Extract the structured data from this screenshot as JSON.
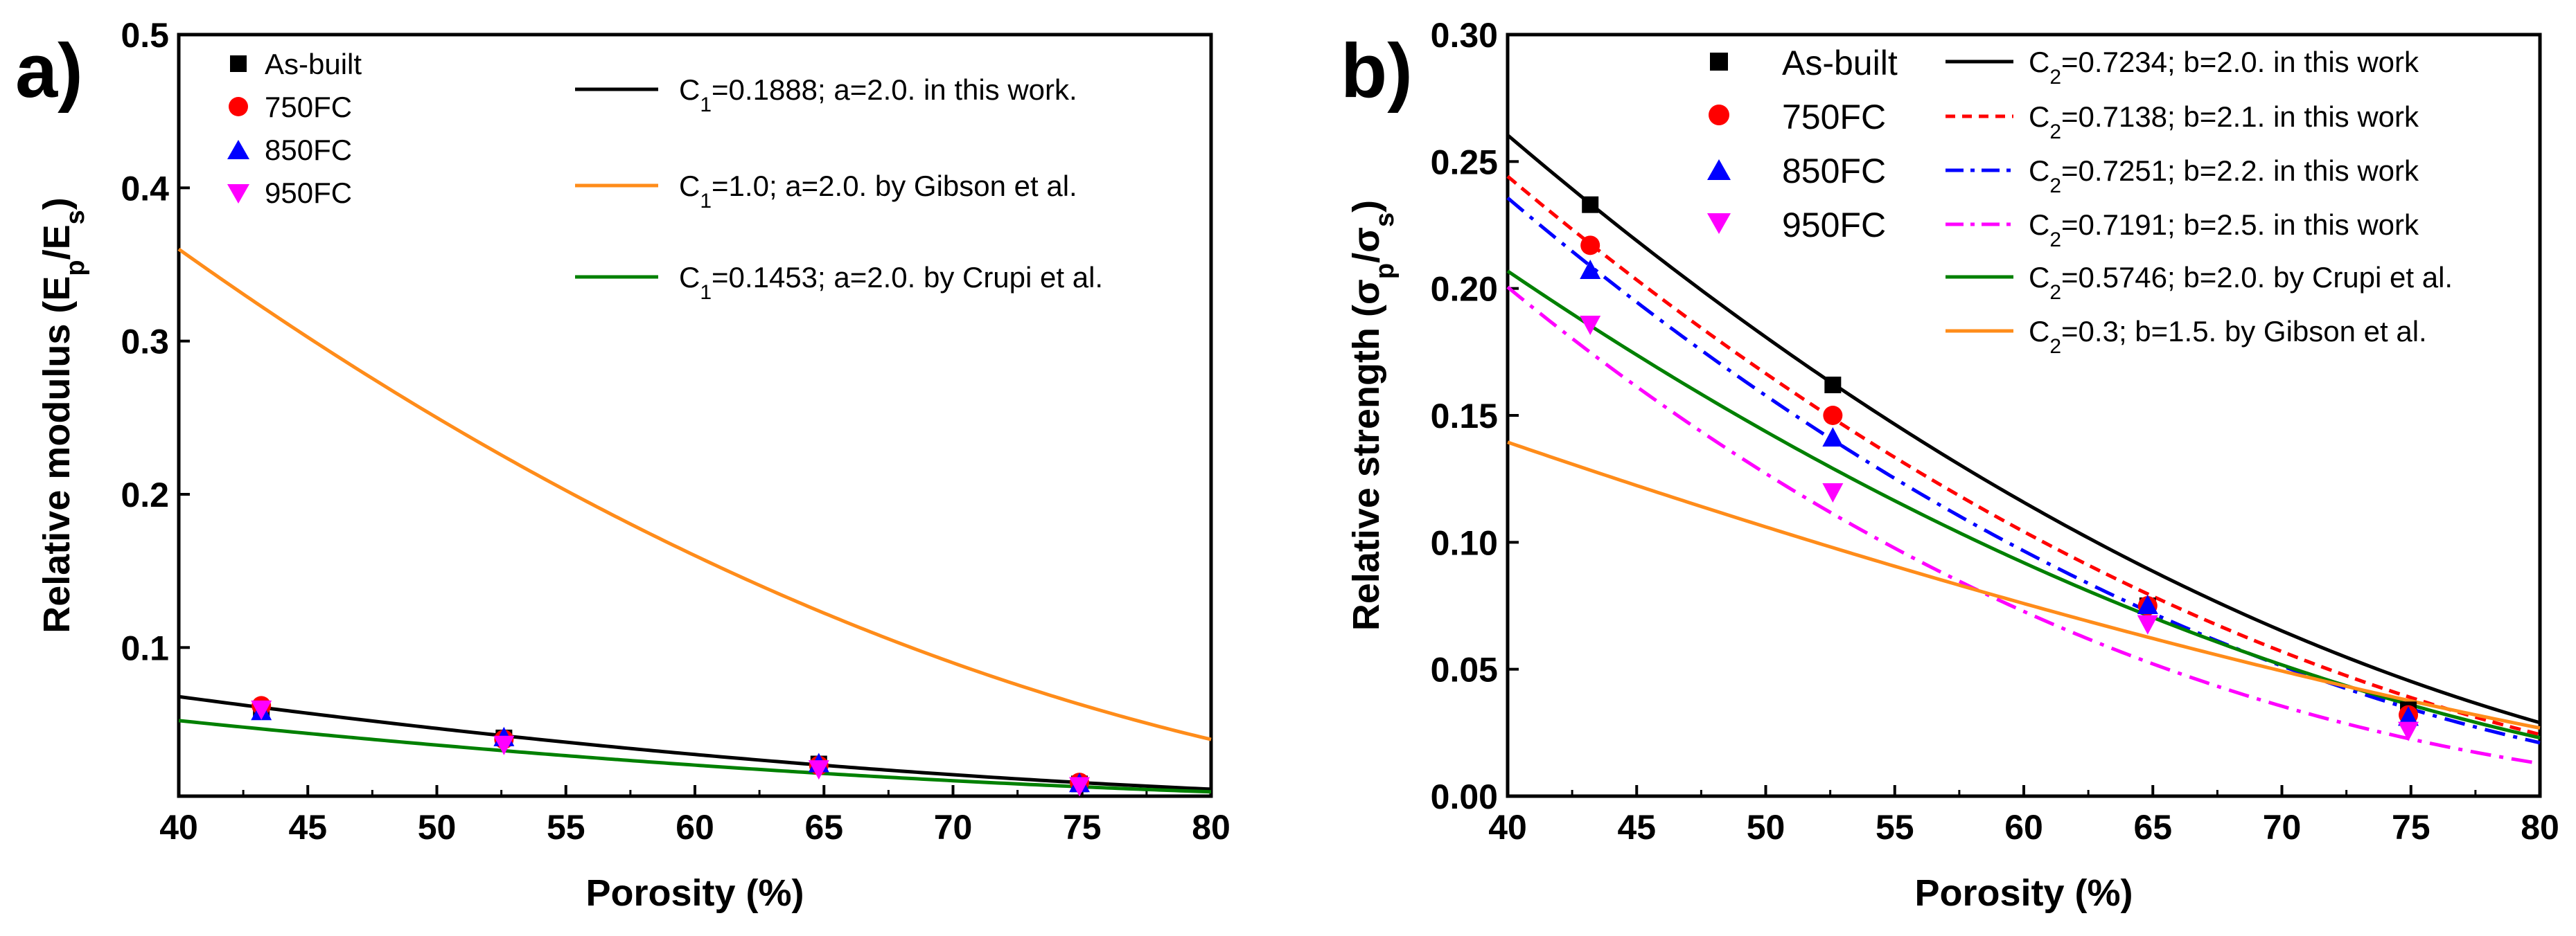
{
  "chart_data": [
    {
      "panel_label": "a)",
      "type": "scatter",
      "xlabel": "Porosity (%)",
      "ylabel": "Relative modulus (E_p/E_s)",
      "ylabel_parts": {
        "main": "Relative modulus (E",
        "sub1": "p",
        "mid": "/E",
        "sub2": "s",
        "end": ")"
      },
      "xlim": [
        40,
        80
      ],
      "ylim": [
        0.003,
        0.5
      ],
      "xticks": [
        40,
        45,
        50,
        55,
        60,
        65,
        70,
        75,
        80
      ],
      "yticks": [
        0.1,
        0.2,
        0.3,
        0.4,
        0.5
      ],
      "ytick_labels": [
        "0.1",
        "0.2",
        "0.3",
        "0.4",
        "0.5"
      ],
      "grid": false,
      "legend_location": "top",
      "scatter_series": [
        {
          "name": "As-built",
          "marker": "square",
          "color": "#000000",
          "points": [
            [
              43.2,
              0.059
            ],
            [
              52.6,
              0.041
            ],
            [
              64.8,
              0.024
            ],
            [
              74.9,
              0.011
            ]
          ]
        },
        {
          "name": "750FC",
          "marker": "circle",
          "color": "#ff0000",
          "points": [
            [
              43.2,
              0.062
            ],
            [
              52.6,
              0.04
            ],
            [
              64.8,
              0.023
            ],
            [
              74.9,
              0.012
            ]
          ]
        },
        {
          "name": "850FC",
          "marker": "triangle-up",
          "color": "#0000ff",
          "points": [
            [
              43.2,
              0.058
            ],
            [
              52.6,
              0.041
            ],
            [
              64.8,
              0.024
            ],
            [
              74.9,
              0.011
            ]
          ]
        },
        {
          "name": "950FC",
          "marker": "triangle-down",
          "color": "#ff00ff",
          "points": [
            [
              43.2,
              0.06
            ],
            [
              52.6,
              0.037
            ],
            [
              64.8,
              0.021
            ],
            [
              74.9,
              0.01
            ]
          ]
        }
      ],
      "fit_series": [
        {
          "label_pre": "C",
          "label_sub": "1",
          "label_post": "=0.1888; a=2.0. in this work.",
          "C": 0.1888,
          "exponent": 2.0,
          "color": "#000000",
          "dash": "solid"
        },
        {
          "label_pre": "C",
          "label_sub": "1",
          "label_post": "=1.0; a=2.0. by Gibson et al.",
          "C": 1.0,
          "exponent": 2.0,
          "color": "#ff8c1a",
          "dash": "solid"
        },
        {
          "label_pre": "C",
          "label_sub": "1",
          "label_post": "=0.1453; a=2.0. by Crupi et al.",
          "C": 0.1453,
          "exponent": 2.0,
          "color": "#008000",
          "dash": "solid"
        }
      ]
    },
    {
      "panel_label": "b)",
      "type": "scatter",
      "xlabel": "Porosity (%)",
      "ylabel": "Relative strength (σ_p/σ_s)",
      "ylabel_parts": {
        "main": "Relative strength (σ",
        "sub1": "p",
        "mid": "/σ",
        "sub2": "s",
        "end": ")"
      },
      "xlim": [
        40,
        80
      ],
      "ylim": [
        0,
        0.3
      ],
      "xticks": [
        40,
        45,
        50,
        55,
        60,
        65,
        70,
        75,
        80
      ],
      "yticks": [
        0,
        0.05,
        0.1,
        0.15,
        0.2,
        0.25,
        0.3
      ],
      "ytick_labels": [
        "0.00",
        "0.05",
        "0.10",
        "0.15",
        "0.20",
        "0.25",
        "0.30"
      ],
      "grid": false,
      "legend_location": "top",
      "scatter_series": [
        {
          "name": "As-built",
          "marker": "square",
          "color": "#000000",
          "points": [
            [
              43.2,
              0.233
            ],
            [
              52.6,
              0.162
            ],
            [
              64.8,
              0.075
            ],
            [
              74.9,
              0.034
            ]
          ]
        },
        {
          "name": "750FC",
          "marker": "circle",
          "color": "#ff0000",
          "points": [
            [
              43.2,
              0.217
            ],
            [
              52.6,
              0.15
            ],
            [
              64.8,
              0.075
            ],
            [
              74.9,
              0.032
            ]
          ]
        },
        {
          "name": "850FC",
          "marker": "triangle-up",
          "color": "#0000ff",
          "points": [
            [
              43.2,
              0.207
            ],
            [
              52.6,
              0.141
            ],
            [
              64.8,
              0.075
            ],
            [
              74.9,
              0.031
            ]
          ]
        },
        {
          "name": "950FC",
          "marker": "triangle-down",
          "color": "#ff00ff",
          "points": [
            [
              43.2,
              0.186
            ],
            [
              52.6,
              0.12
            ],
            [
              64.8,
              0.068
            ],
            [
              74.9,
              0.026
            ]
          ]
        }
      ],
      "fit_series": [
        {
          "label_pre": "C",
          "label_sub": "2",
          "label_post": "=0.7234; b=2.0. in this work",
          "C": 0.7234,
          "exponent": 2.0,
          "color": "#000000",
          "dash": "solid"
        },
        {
          "label_pre": "C",
          "label_sub": "2",
          "label_post": "=0.7138; b=2.1. in this work",
          "C": 0.7138,
          "exponent": 2.1,
          "color": "#ff0000",
          "dash": "dash"
        },
        {
          "label_pre": "C",
          "label_sub": "2",
          "label_post": "=0.7251; b=2.2. in this work",
          "C": 0.7251,
          "exponent": 2.2,
          "color": "#0000ff",
          "dash": "dashdot"
        },
        {
          "label_pre": "C",
          "label_sub": "2",
          "label_post": "=0.7191; b=2.5. in this work",
          "C": 0.7191,
          "exponent": 2.5,
          "color": "#ff00ff",
          "dash": "dashdot"
        },
        {
          "label_pre": "C",
          "label_sub": "2",
          "label_post": "=0.5746; b=2.0. by Crupi et al.",
          "C": 0.5746,
          "exponent": 2.0,
          "color": "#008000",
          "dash": "solid"
        },
        {
          "label_pre": "C",
          "label_sub": "2",
          "label_post": "=0.3; b=1.5. by Gibson et al.",
          "C": 0.3,
          "exponent": 1.5,
          "color": "#ff8c1a",
          "dash": "solid"
        }
      ]
    }
  ]
}
